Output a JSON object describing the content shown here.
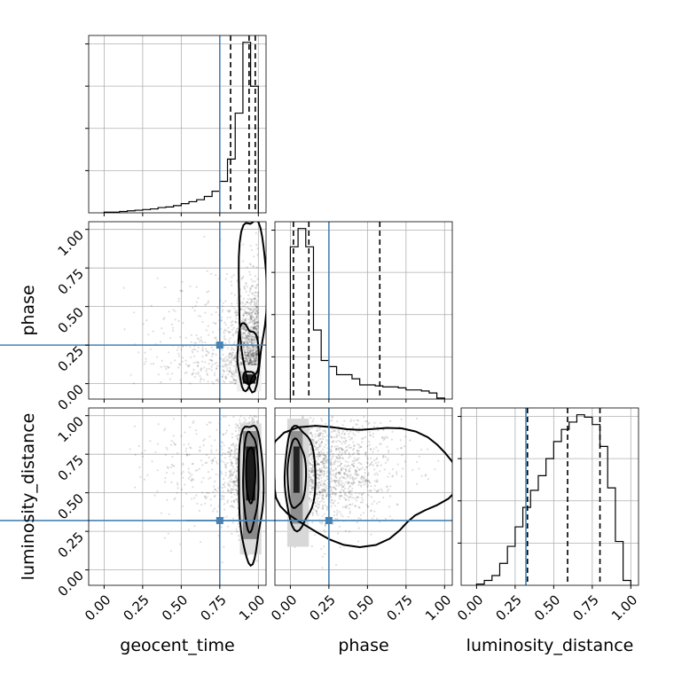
{
  "chart_data": {
    "type": "corner",
    "parameters": [
      "geocent_time",
      "phase",
      "luminosity_distance"
    ],
    "axis_range": [
      -0.1,
      1.05
    ],
    "tick_values": [
      0.0,
      0.25,
      0.5,
      0.75,
      1.0
    ],
    "tick_labels": [
      "0.00",
      "0.25",
      "0.50",
      "0.75",
      "1.00"
    ],
    "grid": true,
    "truth_color": "#4682b4",
    "truths": {
      "geocent_time": 0.75,
      "phase": 0.25,
      "luminosity_distance": 0.32
    },
    "histograms": {
      "geocent_time": {
        "bins": [
          0.0,
          0.05,
          0.1,
          0.15,
          0.2,
          0.25,
          0.3,
          0.35,
          0.4,
          0.45,
          0.5,
          0.55,
          0.6,
          0.65,
          0.7,
          0.75,
          0.8,
          0.85,
          0.9,
          0.95,
          1.0
        ],
        "values": [
          1,
          1,
          2,
          3,
          4,
          5,
          6,
          8,
          9,
          11,
          14,
          17,
          20,
          25,
          33,
          48,
          82,
          152,
          260,
          193
        ],
        "quantiles": [
          0.82,
          0.94,
          0.98
        ]
      },
      "phase": {
        "bins": [
          0.0,
          0.05,
          0.1,
          0.15,
          0.2,
          0.25,
          0.3,
          0.35,
          0.4,
          0.45,
          0.5,
          0.55,
          0.6,
          0.65,
          0.7,
          0.75,
          0.8,
          0.85,
          0.9,
          0.95,
          1.0
        ],
        "values": [
          150,
          168,
          150,
          68,
          38,
          32,
          24,
          24,
          20,
          14,
          14,
          13,
          12,
          12,
          11,
          9,
          9,
          8,
          6,
          1
        ],
        "quantiles": [
          0.02,
          0.12,
          0.58
        ]
      },
      "luminosity_distance": {
        "bins": [
          0.0,
          0.05,
          0.1,
          0.15,
          0.2,
          0.25,
          0.3,
          0.35,
          0.4,
          0.45,
          0.5,
          0.55,
          0.6,
          0.65,
          0.7,
          0.75,
          0.8,
          0.85,
          0.9,
          0.95,
          1.0
        ],
        "values": [
          1,
          4,
          8,
          18,
          32,
          48,
          64,
          78,
          90,
          104,
          118,
          128,
          134,
          140,
          138,
          132,
          114,
          80,
          36,
          4
        ],
        "quantiles": [
          0.33,
          0.59,
          0.8
        ]
      }
    }
  }
}
